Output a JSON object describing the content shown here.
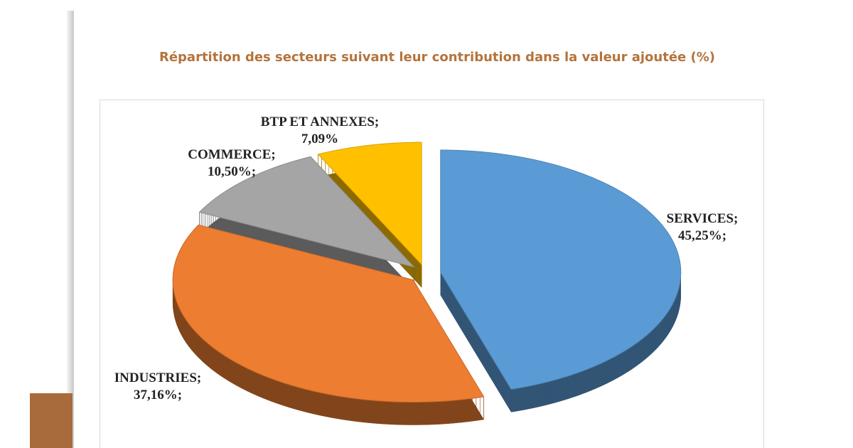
{
  "chart_data": {
    "type": "pie",
    "title": "Répartition des secteurs suivant leur contribution dans la valeur ajoutée (%)",
    "categories": [
      "SERVICES;",
      "INDUSTRIES;",
      "COMMERCE;",
      "BTP ET ANNEXES;"
    ],
    "values": [
      45.25,
      37.16,
      10.5,
      7.09
    ],
    "value_labels": [
      "45,25%;",
      "37,16%;",
      "10,50%;",
      "7,09%"
    ],
    "colors": [
      "#5b9bd5",
      "#ed7d31",
      "#a5a5a5",
      "#ffc000"
    ]
  }
}
